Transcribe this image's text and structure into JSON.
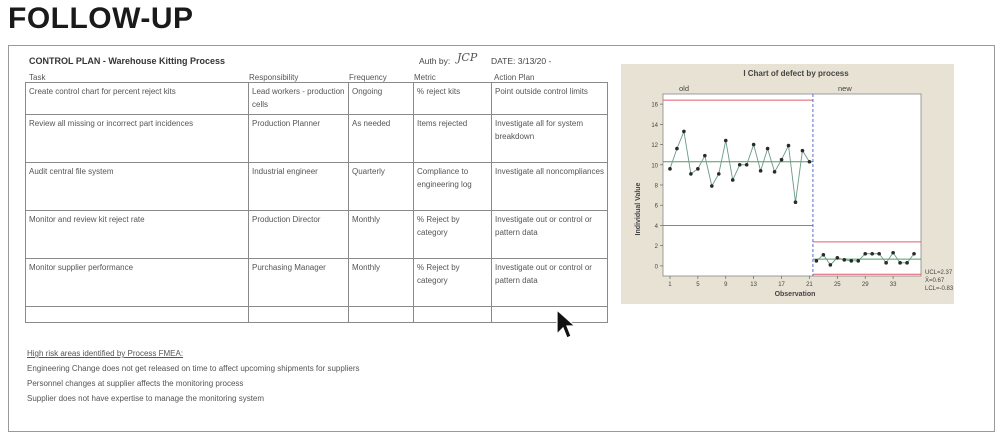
{
  "slide": {
    "title": "FOLLOW-UP"
  },
  "plan": {
    "title": "CONTROL PLAN - Warehouse Kitting Process",
    "auth_label": "Auth by:",
    "auth_signature": "JCP",
    "date": "DATE: 3/13/20 -",
    "column_headers": [
      "Task",
      "Responsibility",
      "Frequency",
      "Metric",
      "Action Plan"
    ],
    "rows": [
      [
        "Create control chart for percent reject kits",
        "Lead workers - production cells",
        "Ongoing",
        "% reject kits",
        "Point outside control limits"
      ],
      [
        "Review all missing or incorrect part incidences",
        "Production Planner",
        "As needed",
        "Items rejected",
        "Investigate all for system breakdown"
      ],
      [
        "Audit central file system",
        "Industrial engineer",
        "Quarterly",
        "Compliance to engineering log",
        "Investigate all noncompliances"
      ],
      [
        "Monitor and review kit reject rate",
        "Production Director",
        "Monthly",
        "% Reject by category",
        "Investigate out or control or pattern data"
      ],
      [
        "Monitor supplier performance",
        "Purchasing Manager",
        "Monthly",
        "% Reject by category",
        "Investigate out or control or pattern data"
      ],
      [
        "",
        "",
        "",
        "",
        ""
      ]
    ]
  },
  "risks": {
    "heading": "High risk areas identified by Process FMEA:",
    "items": [
      "Engineering Change does not get released on time to affect upcoming shipments for suppliers",
      "Personnel changes at supplier affects the monitoring process",
      "Supplier does not have expertise to manage the monitoring system"
    ]
  },
  "chart_data": {
    "type": "line",
    "title": "I Chart of defect by process",
    "xlabel": "Observation",
    "ylabel": "Individual Value",
    "stages": [
      "old",
      "new"
    ],
    "xlim": [
      0,
      37
    ],
    "ylim": [
      -1,
      17
    ],
    "x_ticks": [
      1,
      5,
      9,
      13,
      17,
      21,
      25,
      29,
      33
    ],
    "y_ticks": [
      0,
      2,
      4,
      6,
      8,
      10,
      12,
      14,
      16
    ],
    "stage_break": 21.5,
    "series": [
      {
        "stage": "old",
        "x": [
          1,
          2,
          3,
          4,
          5,
          6,
          7,
          8,
          9,
          10,
          11,
          12,
          13,
          14,
          15,
          16,
          17,
          18,
          19,
          20,
          21
        ],
        "y": [
          9.6,
          11.6,
          13.3,
          9.1,
          9.6,
          10.9,
          7.9,
          9.1,
          12.4,
          8.5,
          10.0,
          10.0,
          12.0,
          9.4,
          11.6,
          9.3,
          10.5,
          11.9,
          6.3,
          11.4,
          10.3
        ]
      },
      {
        "stage": "new",
        "x": [
          22,
          23,
          24,
          25,
          26,
          27,
          28,
          29,
          30,
          31,
          32,
          33,
          34,
          35,
          36
        ],
        "y": [
          0.5,
          1.1,
          0.1,
          0.8,
          0.6,
          0.5,
          0.5,
          1.2,
          1.2,
          1.2,
          0.3,
          1.3,
          0.3,
          0.3,
          1.2
        ]
      }
    ],
    "limits": [
      {
        "stage": "old",
        "center": 10.3,
        "ucl": 16.4,
        "lcl": 4.0
      },
      {
        "stage": "new",
        "center": 0.67,
        "ucl": 2.37,
        "lcl": -0.83
      }
    ],
    "annotations": [
      "UCL=2.37",
      "X̄=0.67",
      "LCL=-0.83"
    ],
    "colors": {
      "points": "#2a2a2a",
      "line": "#6a9a86",
      "center": "#4f9b6a",
      "limits": "#e05b6b",
      "stage_divider": "#5a6fd0",
      "panel": "#e7e2d3",
      "plot_bg": "#ffffff"
    }
  }
}
